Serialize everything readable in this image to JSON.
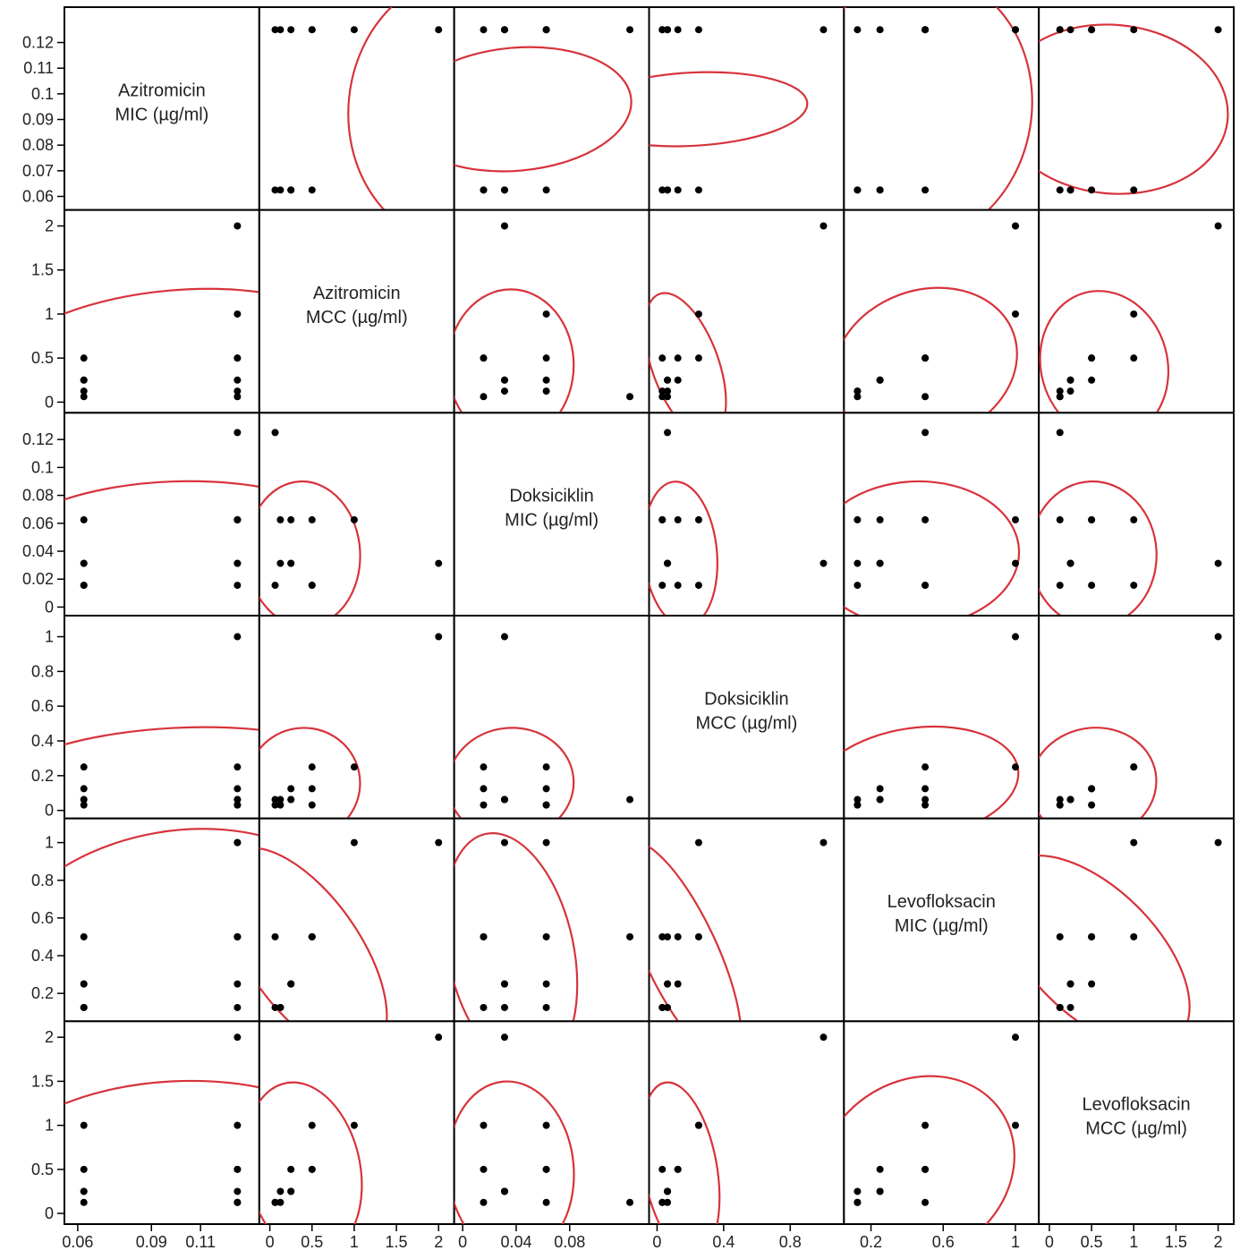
{
  "chart_data": {
    "type": "scatter-matrix",
    "point_color": "#000000",
    "ellipse_color": "#d7333b",
    "variables": [
      {
        "name": "Azitromicin MIC (µg/ml)",
        "label_lines": [
          "Azitromicin",
          "MIC (µg/ml)"
        ],
        "range": [
          0.0575,
          0.131
        ],
        "ticks": [
          0.06,
          0.07,
          0.08,
          0.09,
          0.1,
          0.11,
          0.12
        ],
        "tick_labels": [
          "0.06",
          "0.07",
          "0.08",
          "0.09",
          "0.1",
          "0.11",
          "0.12"
        ],
        "x_ticks": [
          0.06,
          0.09,
          0.11
        ],
        "x_tick_labels": [
          "0.06",
          "0.09",
          "0.11"
        ]
      },
      {
        "name": "Azitromicin MCC (µg/ml)",
        "label_lines": [
          "Azitromicin",
          "MCC (µg/ml)"
        ],
        "range": [
          -0.04,
          2.1
        ],
        "ticks": [
          0,
          0.5,
          1,
          1.5,
          2
        ],
        "tick_labels": [
          "0",
          "0.5",
          "1",
          "1.5",
          "2"
        ],
        "x_ticks": [
          0,
          0.5,
          1,
          1.5,
          2
        ],
        "x_tick_labels": [
          "0",
          "0.5",
          "1",
          "1.5",
          "2"
        ]
      },
      {
        "name": "Doksiciklin MIC (µg/ml)",
        "label_lines": [
          "Doksiciklin",
          "MIC (µg/ml)"
        ],
        "range": [
          -0.001,
          0.134
        ],
        "ticks": [
          0,
          0.02,
          0.04,
          0.06,
          0.08,
          0.1,
          0.12
        ],
        "tick_labels": [
          "0",
          "0.02",
          "0.04",
          "0.06",
          "0.08",
          "0.1",
          "0.12"
        ],
        "x_ticks": [
          0,
          0.04,
          0.08
        ],
        "x_tick_labels": [
          "0",
          "0.04",
          "0.08"
        ]
      },
      {
        "name": "Doksiciklin MCC (µg/ml)",
        "label_lines": [
          "Doksiciklin",
          "MCC (µg/ml)"
        ],
        "range": [
          -0.005,
          1.08
        ],
        "ticks": [
          0,
          0.2,
          0.4,
          0.6,
          0.8,
          1
        ],
        "tick_labels": [
          "0",
          "0.2",
          "0.4",
          "0.6",
          "0.8",
          "1"
        ],
        "x_ticks": [
          0,
          0.4,
          0.8
        ],
        "x_tick_labels": [
          "0",
          "0.4",
          "0.8"
        ]
      },
      {
        "name": "Levofloksacin MIC (µg/ml)",
        "label_lines": [
          "Levofloksacin",
          "MIC (µg/ml)"
        ],
        "range": [
          0.09,
          1.09
        ],
        "ticks": [
          0.2,
          0.4,
          0.6,
          0.8,
          1
        ],
        "tick_labels": [
          "0.2",
          "0.4",
          "0.6",
          "0.8",
          "1"
        ],
        "x_ticks": [
          0.2,
          0.6,
          1
        ],
        "x_tick_labels": [
          "0.2",
          "0.6",
          "1"
        ]
      },
      {
        "name": "Levofloksacin MCC (µg/ml)",
        "label_lines": [
          "Levofloksacin",
          "MCC (µg/ml)"
        ],
        "range": [
          -0.04,
          2.1
        ],
        "ticks": [
          0,
          0.5,
          1,
          1.5,
          2
        ],
        "tick_labels": [
          "0",
          "0.5",
          "1",
          "1.5",
          "2"
        ],
        "x_ticks": [
          0,
          0.5,
          1,
          1.5,
          2
        ],
        "x_tick_labels": [
          "0",
          "0.5",
          "1",
          "1.5",
          "2"
        ]
      }
    ],
    "observations": [
      [
        0.0625,
        0.0625,
        0.0156,
        0.0313,
        0.125,
        0.125
      ],
      [
        0.0625,
        0.125,
        0.0313,
        0.0625,
        0.125,
        0.25
      ],
      [
        0.0625,
        0.25,
        0.0625,
        0.125,
        0.25,
        0.5
      ],
      [
        0.0625,
        0.5,
        0.0156,
        0.25,
        0.5,
        1
      ],
      [
        0.125,
        0.125,
        0.0625,
        0.0313,
        0.125,
        0.125
      ],
      [
        0.125,
        0.25,
        0.0313,
        0.0625,
        0.25,
        0.25
      ],
      [
        0.125,
        0.5,
        0.0156,
        0.125,
        0.5,
        0.5
      ],
      [
        0.125,
        1,
        0.0625,
        0.25,
        1,
        1
      ],
      [
        0.125,
        2,
        0.0313,
        1,
        1,
        2
      ],
      [
        0.125,
        0.0625,
        0.125,
        0.0625,
        0.5,
        0.125
      ],
      [
        0.0625,
        0.25,
        0.0313,
        0.0625,
        0.25,
        0.25
      ],
      [
        0.125,
        0.5,
        0.0625,
        0.0313,
        0.5,
        0.5
      ]
    ],
    "ellipses": [
      {
        "row": 0,
        "col": 1,
        "cx": 2.3,
        "cy": 0.094,
        "rx": 1.6,
        "ry": 0.045,
        "angle_deg": 84
      },
      {
        "row": 0,
        "col": 2,
        "cx": 0.04,
        "cy": 0.094,
        "rx": 0.046,
        "ry": 0.045,
        "angle_deg": 95
      },
      {
        "row": 0,
        "col": 3,
        "cx": 0.21,
        "cy": 0.094,
        "rx": 0.22,
        "ry": 0.045,
        "angle_deg": 93
      },
      {
        "row": 0,
        "col": 4,
        "cx": 0.45,
        "cy": 0.094,
        "rx": 0.75,
        "ry": 0.045,
        "angle_deg": 80
      },
      {
        "row": 0,
        "col": 5,
        "cx": 0.75,
        "cy": 0.094,
        "rx": 1.0,
        "ry": 0.045,
        "angle_deg": 85
      },
      {
        "row": 1,
        "col": 0,
        "cx": 0.1,
        "cy": 0.42,
        "rx": 0.075,
        "ry": 0.85,
        "angle_deg": 5
      },
      {
        "row": 1,
        "col": 2,
        "cx": 0.036,
        "cy": 0.42,
        "rx": 0.047,
        "ry": 0.86,
        "angle_deg": 0
      },
      {
        "row": 1,
        "col": 3,
        "cx": 0.17,
        "cy": 0.42,
        "rx": 0.2,
        "ry": 0.86,
        "angle_deg": 20
      },
      {
        "row": 1,
        "col": 4,
        "cx": 0.5,
        "cy": 0.42,
        "rx": 0.52,
        "ry": 0.85,
        "angle_deg": 20
      },
      {
        "row": 1,
        "col": 5,
        "cx": 0.65,
        "cy": 0.42,
        "rx": 0.75,
        "ry": 0.85,
        "angle_deg": 15
      },
      {
        "row": 2,
        "col": 0,
        "cx": 0.1,
        "cy": 0.038,
        "rx": 0.075,
        "ry": 0.052,
        "angle_deg": 2
      },
      {
        "row": 2,
        "col": 1,
        "cx": 0.4,
        "cy": 0.038,
        "rx": 0.67,
        "ry": 0.052,
        "angle_deg": 3
      },
      {
        "row": 2,
        "col": 3,
        "cx": 0.14,
        "cy": 0.038,
        "rx": 0.22,
        "ry": 0.052,
        "angle_deg": 5
      },
      {
        "row": 2,
        "col": 4,
        "cx": 0.45,
        "cy": 0.038,
        "rx": 0.57,
        "ry": 0.052,
        "angle_deg": 2
      },
      {
        "row": 2,
        "col": 5,
        "cx": 0.52,
        "cy": 0.038,
        "rx": 0.75,
        "ry": 0.052,
        "angle_deg": 3
      },
      {
        "row": 3,
        "col": 0,
        "cx": 0.1,
        "cy": 0.155,
        "rx": 0.075,
        "ry": 0.32,
        "angle_deg": 3
      },
      {
        "row": 3,
        "col": 1,
        "cx": 0.4,
        "cy": 0.155,
        "rx": 0.67,
        "ry": 0.32,
        "angle_deg": 12
      },
      {
        "row": 3,
        "col": 2,
        "cx": 0.036,
        "cy": 0.155,
        "rx": 0.047,
        "ry": 0.32,
        "angle_deg": 5
      },
      {
        "row": 3,
        "col": 4,
        "cx": 0.45,
        "cy": 0.155,
        "rx": 0.57,
        "ry": 0.32,
        "angle_deg": 8
      },
      {
        "row": 3,
        "col": 5,
        "cx": 0.52,
        "cy": 0.155,
        "rx": 0.75,
        "ry": 0.32,
        "angle_deg": 10
      },
      {
        "row": 4,
        "col": 0,
        "cx": 0.1,
        "cy": 0.42,
        "rx": 0.075,
        "ry": 0.64,
        "angle_deg": 10
      },
      {
        "row": 4,
        "col": 1,
        "cx": 0.4,
        "cy": 0.42,
        "rx": 0.67,
        "ry": 0.64,
        "angle_deg": 35
      },
      {
        "row": 4,
        "col": 2,
        "cx": 0.036,
        "cy": 0.42,
        "rx": 0.047,
        "ry": 0.64,
        "angle_deg": 12
      },
      {
        "row": 4,
        "col": 3,
        "cx": 0.14,
        "cy": 0.42,
        "rx": 0.22,
        "ry": 0.64,
        "angle_deg": 25
      },
      {
        "row": 4,
        "col": 5,
        "cx": 0.52,
        "cy": 0.42,
        "rx": 0.75,
        "ry": 0.64,
        "angle_deg": 45
      },
      {
        "row": 5,
        "col": 0,
        "cx": 0.1,
        "cy": 0.5,
        "rx": 0.075,
        "ry": 1.0,
        "angle_deg": 3
      },
      {
        "row": 5,
        "col": 1,
        "cx": 0.4,
        "cy": 0.5,
        "rx": 0.67,
        "ry": 1.0,
        "angle_deg": 12
      },
      {
        "row": 5,
        "col": 2,
        "cx": 0.036,
        "cy": 0.5,
        "rx": 0.047,
        "ry": 1.0,
        "angle_deg": 5
      },
      {
        "row": 5,
        "col": 3,
        "cx": 0.14,
        "cy": 0.5,
        "rx": 0.22,
        "ry": 1.0,
        "angle_deg": 10
      },
      {
        "row": 5,
        "col": 4,
        "cx": 0.45,
        "cy": 0.5,
        "rx": 0.57,
        "ry": 1.0,
        "angle_deg": 35
      }
    ]
  }
}
